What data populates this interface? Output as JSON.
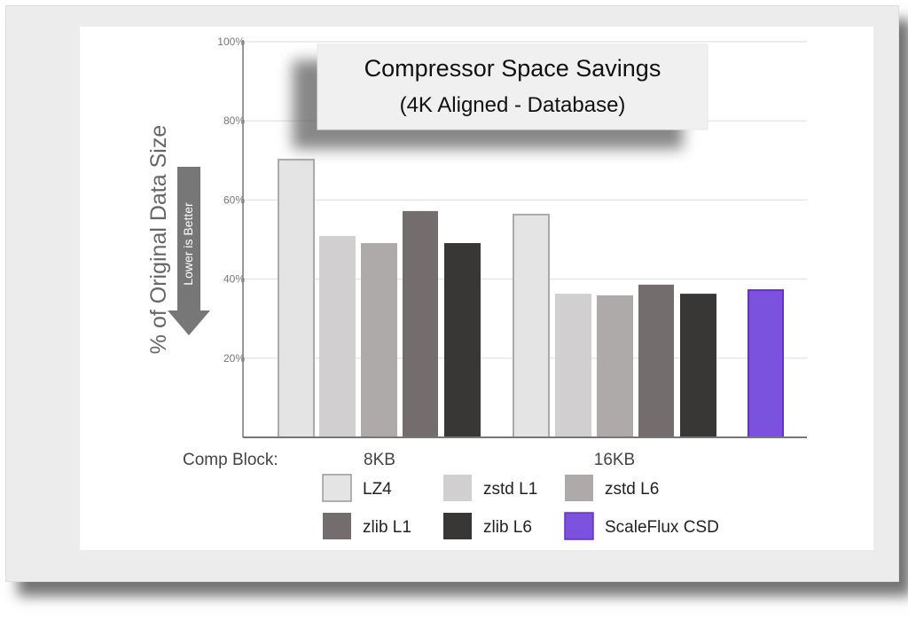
{
  "chart_data": {
    "type": "bar",
    "title": "Compressor Space Savings",
    "subtitle": "(4K Aligned - Database)",
    "ylabel": "% of Original Data Size",
    "annotation": "Lower is Better",
    "xlabel": "Comp Block:",
    "categories": [
      "8KB",
      "16KB"
    ],
    "ylim": [
      0,
      100
    ],
    "yticks": [
      "20%",
      "40%",
      "60%",
      "80%",
      "100%"
    ],
    "grid": true,
    "legend_position": "bottom",
    "series": [
      {
        "name": "LZ4",
        "color": "#e4e4e4",
        "values": [
          70.2,
          56.3
        ]
      },
      {
        "name": "zstd L1",
        "color": "#d1cfcf",
        "values": [
          50.9,
          36.3
        ]
      },
      {
        "name": "zstd L6",
        "color": "#aeaaa9",
        "values": [
          49.1,
          35.9
        ]
      },
      {
        "name": "zlib L1",
        "color": "#736e6d",
        "values": [
          57.2,
          38.6
        ]
      },
      {
        "name": "zlib L6",
        "color": "#393736",
        "values": [
          49.1,
          36.3
        ]
      },
      {
        "name": "ScaleFlux CSD",
        "color": "#7b52de",
        "values": [
          null,
          37.2
        ]
      }
    ]
  }
}
